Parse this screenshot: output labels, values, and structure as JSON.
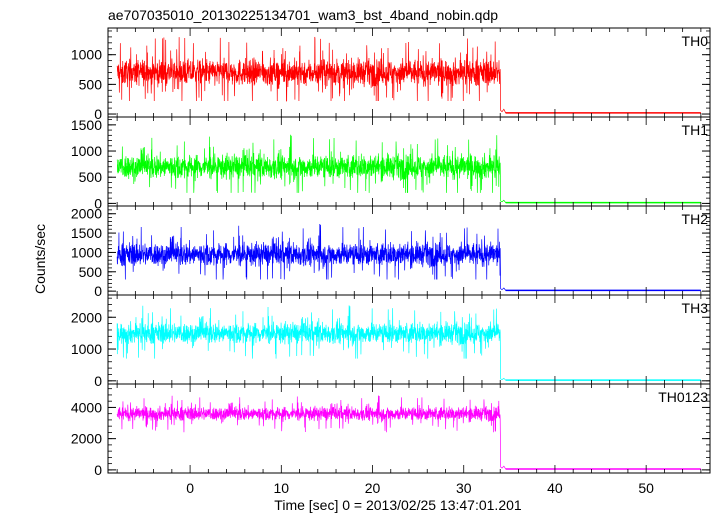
{
  "chart_data": {
    "type": "line",
    "title": "ae707035010_20130225134701_wam3_bst_4band_nobin.qdp",
    "xlabel": "Time [sec] 0 = 2013/02/25 13:47:01.201",
    "ylabel": "Counts/sec",
    "xlim": [
      -9,
      57
    ],
    "x_ticks": [
      0,
      10,
      20,
      30,
      40,
      50
    ],
    "x_tick_labels": [
      "0",
      "10",
      "20",
      "30",
      "40",
      "50"
    ],
    "grid": false,
    "panels": [
      {
        "name": "TH0",
        "color": "#ff0000",
        "ylim": [
          -50,
          1450
        ],
        "y_ticks": [
          0,
          500,
          1000
        ],
        "y_tick_labels": [
          "0",
          "500",
          "1000"
        ],
        "active_range": [
          -8,
          34
        ],
        "active_mean": 700,
        "active_spread": 200,
        "active_min": 220,
        "active_max": 1450,
        "tail_level": 20
      },
      {
        "name": "TH1",
        "color": "#00ff00",
        "ylim": [
          -50,
          1650
        ],
        "y_ticks": [
          0,
          500,
          1000,
          1500
        ],
        "y_tick_labels": [
          "0",
          "500",
          "1000",
          "1500"
        ],
        "active_range": [
          -8,
          34
        ],
        "active_mean": 700,
        "active_spread": 210,
        "active_min": 200,
        "active_max": 1550,
        "tail_level": 15
      },
      {
        "name": "TH2",
        "color": "#0000ff",
        "ylim": [
          -100,
          2200
        ],
        "y_ticks": [
          0,
          500,
          1000,
          1500,
          2000
        ],
        "y_tick_labels": [
          "0",
          "500",
          "1000",
          "1500",
          "2000"
        ],
        "active_range": [
          -8,
          34
        ],
        "active_mean": 950,
        "active_spread": 270,
        "active_min": 300,
        "active_max": 2000,
        "tail_level": 20
      },
      {
        "name": "TH3",
        "color": "#00ffff",
        "ylim": [
          -100,
          2700
        ],
        "y_ticks": [
          0,
          1000,
          2000
        ],
        "y_tick_labels": [
          "0",
          "1000",
          "2000"
        ],
        "active_range": [
          -8,
          34
        ],
        "active_mean": 1500,
        "active_spread": 300,
        "active_min": 700,
        "active_max": 2550,
        "tail_level": 20
      },
      {
        "name": "TH0123",
        "color": "#ff00ff",
        "ylim": [
          -200,
          5500
        ],
        "y_ticks": [
          0,
          2000,
          4000
        ],
        "y_tick_labels": [
          "0",
          "2000",
          "4000"
        ],
        "active_range": [
          -8,
          34
        ],
        "active_mean": 3600,
        "active_spread": 400,
        "active_min": 1800,
        "active_max": 4900,
        "tail_level": 60
      }
    ]
  }
}
